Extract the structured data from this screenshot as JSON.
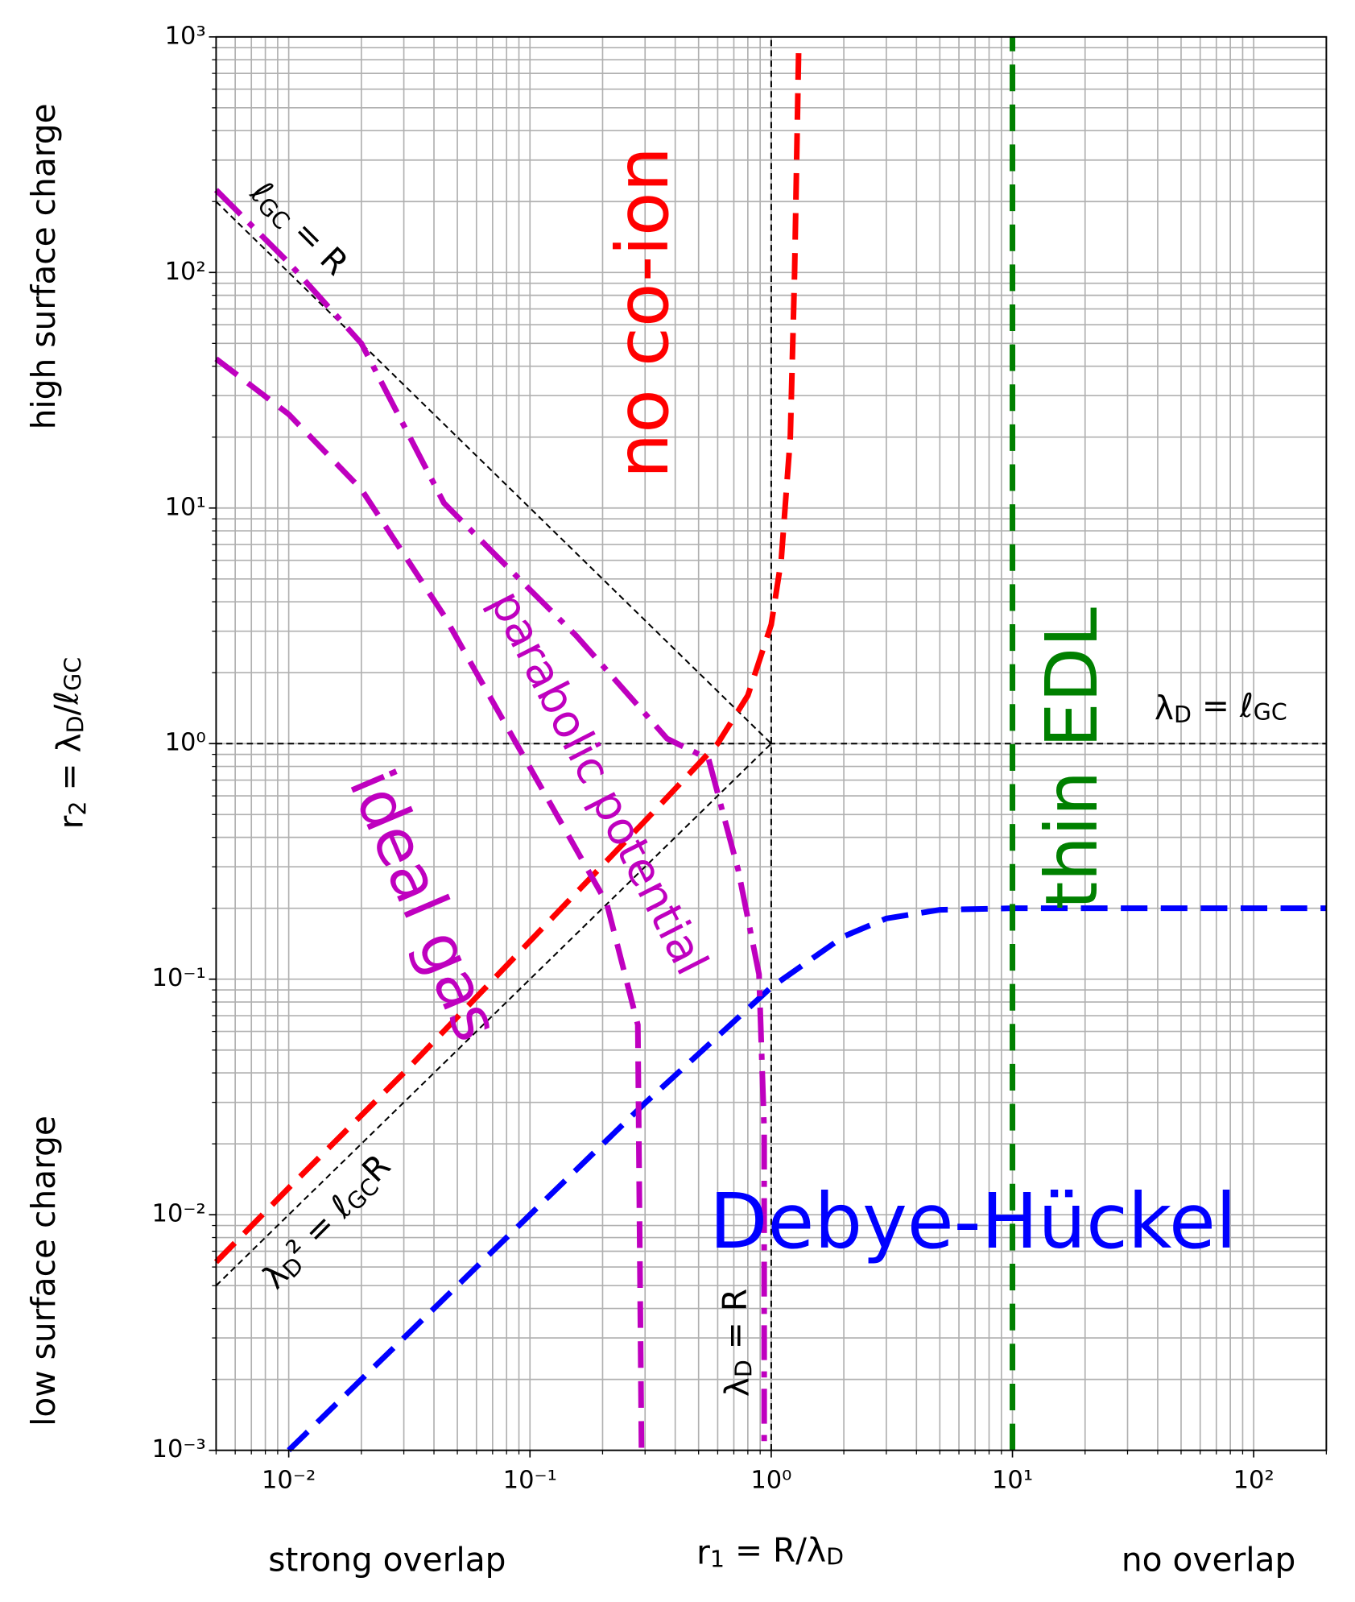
{
  "chart_data": {
    "type": "line",
    "log_x": true,
    "log_y": true,
    "grid": true,
    "xlim": [
      0.005,
      200
    ],
    "ylim": [
      0.001,
      1000
    ],
    "xticks": [
      {
        "value": 0.01,
        "label": "10⁻²"
      },
      {
        "value": 0.1,
        "label": "10⁻¹"
      },
      {
        "value": 1,
        "label": "10⁰"
      },
      {
        "value": 10,
        "label": "10¹"
      },
      {
        "value": 100,
        "label": "10²"
      }
    ],
    "yticks": [
      {
        "value": 0.001,
        "label": "10⁻³"
      },
      {
        "value": 0.01,
        "label": "10⁻²"
      },
      {
        "value": 0.1,
        "label": "10⁻¹"
      },
      {
        "value": 1,
        "label": "10⁰"
      },
      {
        "value": 10,
        "label": "10¹"
      },
      {
        "value": 100,
        "label": "10²"
      },
      {
        "value": 1000,
        "label": "10³"
      }
    ],
    "xminor": [
      0.005,
      0.006,
      0.007,
      0.008,
      0.009,
      0.02,
      0.03,
      0.04,
      0.05,
      0.06,
      0.07,
      0.08,
      0.09,
      0.2,
      0.3,
      0.4,
      0.5,
      0.6,
      0.7,
      0.8,
      0.9,
      2,
      3,
      4,
      5,
      6,
      7,
      8,
      9,
      20,
      30,
      40,
      50,
      60,
      70,
      80,
      90,
      200
    ],
    "yminor": [
      0.002,
      0.003,
      0.004,
      0.005,
      0.006,
      0.007,
      0.008,
      0.009,
      0.02,
      0.03,
      0.04,
      0.05,
      0.06,
      0.07,
      0.08,
      0.09,
      0.2,
      0.3,
      0.4,
      0.5,
      0.6,
      0.7,
      0.8,
      0.9,
      2,
      3,
      4,
      5,
      6,
      7,
      8,
      9,
      20,
      30,
      40,
      50,
      60,
      70,
      80,
      90,
      200,
      300,
      400,
      500,
      600,
      700,
      800,
      900
    ],
    "xlabel": [
      "r",
      "1",
      " = R/λ",
      "D"
    ],
    "ylabel": [
      "r",
      "2",
      " = λ",
      "D",
      "/ℓ",
      "GC"
    ],
    "left_top_label": "high surface charge",
    "left_bottom_label": "low surface charge",
    "bottom_left_label": "strong overlap",
    "bottom_right_label": "no overlap",
    "series": [
      {
        "color": "#000000",
        "linestyle": "thin",
        "x": [
          0.005,
          1
        ],
        "values": [
          200,
          1
        ]
      },
      {
        "color": "#000000",
        "linestyle": "thin",
        "x": [
          0.005,
          1
        ],
        "values": [
          0.005,
          1
        ]
      },
      {
        "color": "#000000",
        "linestyle": "thin",
        "x": [
          0.005,
          200
        ],
        "values": [
          1,
          1
        ]
      },
      {
        "color": "#000000",
        "linestyle": "thin",
        "x": [
          1,
          1
        ],
        "values": [
          0.001,
          1000
        ]
      },
      {
        "color": "#0000ff",
        "linestyle": "dashed",
        "x": [
          0.01,
          0.03,
          0.1,
          0.3,
          1,
          2,
          3,
          5,
          10,
          30,
          100,
          200
        ],
        "values": [
          0.001,
          0.003,
          0.01,
          0.0298,
          0.0924,
          0.152,
          0.181,
          0.197,
          0.2,
          0.2,
          0.2,
          0.2
        ]
      },
      {
        "color": "#ff0000",
        "linestyle": "dashed",
        "x": [
          0.005,
          0.01,
          0.03,
          0.1,
          0.3,
          0.6,
          0.8,
          1,
          1.1,
          1.2,
          1.25,
          1.3
        ],
        "values": [
          0.0063,
          0.013,
          0.04,
          0.145,
          0.47,
          1.0,
          1.6,
          3.2,
          6,
          20,
          100,
          900
        ]
      },
      {
        "color": "#bf00bf",
        "linestyle": "dashdot",
        "x": [
          0.005,
          0.01,
          0.02,
          0.044,
          0.1,
          0.156,
          0.37,
          0.55,
          0.73,
          0.89,
          0.935,
          0.935
        ],
        "values": [
          224,
          110,
          50,
          10.5,
          4.5,
          2.86,
          1.05,
          0.86,
          0.29,
          0.105,
          0.023,
          0.001
        ]
      },
      {
        "color": "#bf00bf",
        "linestyle": "dashed",
        "x": [
          0.005,
          0.01,
          0.02,
          0.044,
          0.107,
          0.208,
          0.28,
          0.29
        ],
        "values": [
          43,
          25,
          12,
          3.5,
          0.7,
          0.21,
          0.064,
          0.001
        ]
      },
      {
        "color": "#008000",
        "linestyle": "dashed",
        "x": [
          10,
          10
        ],
        "values": [
          0.001,
          1000
        ]
      }
    ],
    "annotations": [
      {
        "text": [
          "no co-ion"
        ],
        "color": "#ff0000"
      },
      {
        "text": [
          "thin EDL"
        ],
        "color": "#008000"
      },
      {
        "text": [
          "Debye-Hückel"
        ],
        "color": "#0000ff"
      },
      {
        "text": [
          "ideal gas"
        ],
        "color": "#bf00bf"
      },
      {
        "text": [
          "parabolic potential"
        ],
        "color": "#bf00bf"
      },
      {
        "text": [
          "ℓ",
          "GC",
          " = R"
        ],
        "color": "#000000"
      },
      {
        "text": [
          "λ",
          "D",
          "² = ℓ",
          "GC",
          "R"
        ],
        "color": "#000000"
      },
      {
        "text": [
          "λ",
          "D",
          " = R"
        ],
        "color": "#000000"
      },
      {
        "text": [
          "λ",
          "D",
          " = ℓ",
          "GC"
        ],
        "color": "#000000"
      }
    ]
  }
}
